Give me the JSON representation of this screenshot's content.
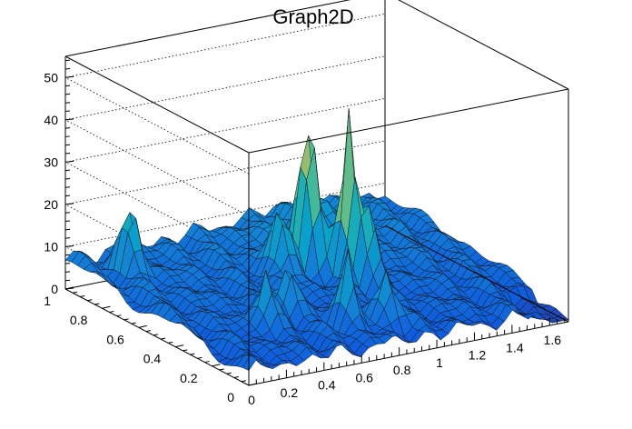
{
  "chart_data": {
    "type": "surface",
    "title": "Graph2D",
    "xlabel": "",
    "ylabel": "",
    "zlabel": "",
    "xlim": [
      0,
      1.7
    ],
    "ylim": [
      0,
      1
    ],
    "zlim": [
      0,
      55
    ],
    "x_ticks": [
      0,
      0.2,
      0.4,
      0.6,
      0.8,
      1,
      1.2,
      1.4,
      1.6
    ],
    "x_tick_labels": [
      "0",
      "0.2",
      "0.4",
      "0.6",
      "0.8",
      "1",
      "1.2",
      "1.4",
      "1.6"
    ],
    "y_ticks": [
      0,
      0.2,
      0.4,
      0.6,
      0.8,
      1
    ],
    "y_tick_labels": [
      "0",
      "0.2",
      "0.4",
      "0.6",
      "0.8",
      "1"
    ],
    "z_ticks": [
      0,
      10,
      20,
      30,
      40,
      50
    ],
    "z_tick_labels": [
      "0",
      "10",
      "20",
      "30",
      "40",
      "50"
    ],
    "grid": true,
    "colormap": [
      "#352a87",
      "#0f5cdd",
      "#1481d6",
      "#06a4ca",
      "#2eb7a4",
      "#87bf77",
      "#d1bb59",
      "#fec832",
      "#f9fb0e"
    ],
    "surface_peaks": [
      {
        "x": 0.2,
        "y": 0.85,
        "z": 23
      },
      {
        "x": 0.55,
        "y": 0.35,
        "z": 20
      },
      {
        "x": 0.38,
        "y": 0.3,
        "z": 19
      },
      {
        "x": 0.92,
        "y": 0.62,
        "z": 52
      },
      {
        "x": 0.78,
        "y": 0.62,
        "z": 27
      },
      {
        "x": 1.02,
        "y": 0.5,
        "z": 44
      },
      {
        "x": 1.05,
        "y": 0.42,
        "z": 28
      },
      {
        "x": 0.72,
        "y": 0.2,
        "z": 24
      },
      {
        "x": 0.9,
        "y": 0.16,
        "z": 20
      },
      {
        "x": 1.2,
        "y": 0.85,
        "z": 12
      }
    ]
  }
}
